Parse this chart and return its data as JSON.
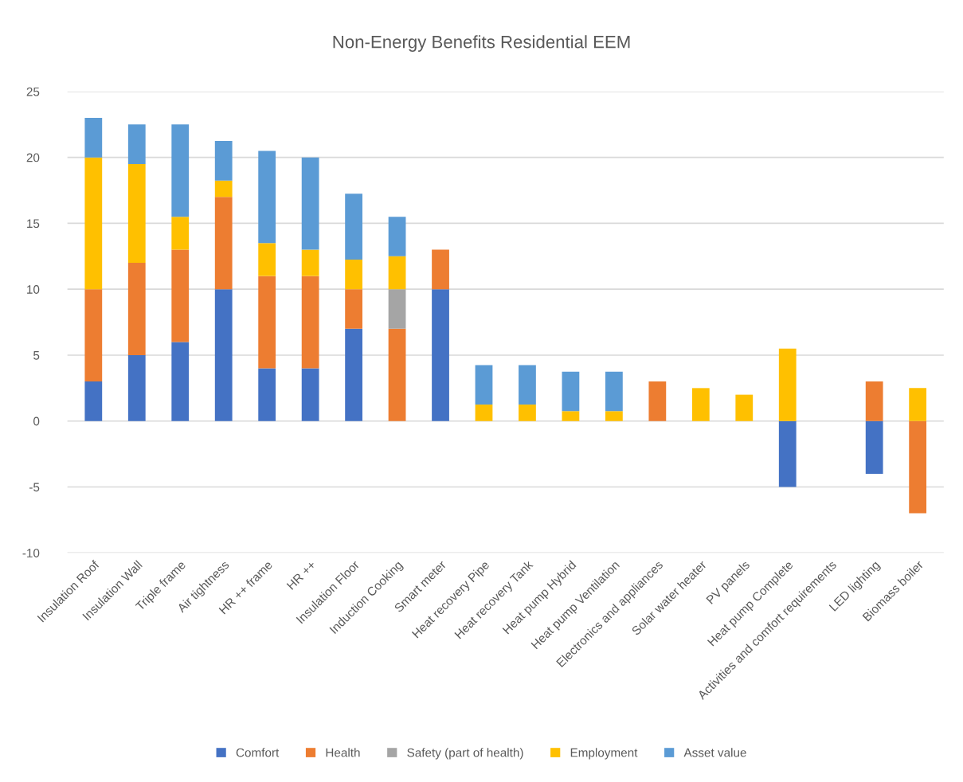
{
  "chart_data": {
    "type": "bar",
    "title": "Non-Energy Benefits Residential EEM",
    "stacked": true,
    "categories": [
      "Insulation Roof",
      "Insulation Wall",
      "Triple frame",
      "Air tightness",
      "HR ++ frame",
      "HR ++",
      "Insulation Floor",
      "Induction Cooking",
      "Smart meter",
      "Heat recovery Pipe",
      "Heat recovery Tank",
      "Heat pump Hybrid",
      "Heat pump Ventilation",
      "Electronics and appliances",
      "Solar water heater",
      "PV panels",
      "Heat pump Complete",
      "Activities and comfort requirements",
      "LED lighting",
      "Biomass boiler"
    ],
    "series": [
      {
        "name": "Comfort",
        "color": "#4472c4",
        "values": [
          3,
          5,
          6,
          10,
          4,
          4,
          7,
          null,
          10,
          null,
          null,
          null,
          null,
          null,
          null,
          null,
          -5,
          null,
          -4,
          null
        ]
      },
      {
        "name": "Health",
        "color": "#ed7d31",
        "values": [
          7,
          7,
          7,
          7,
          7,
          7,
          3,
          7,
          3,
          null,
          null,
          null,
          null,
          3,
          null,
          null,
          null,
          null,
          3,
          -7
        ]
      },
      {
        "name": "Safety (part of health)",
        "color": "#a5a5a5",
        "values": [
          null,
          null,
          null,
          null,
          null,
          null,
          null,
          3,
          null,
          null,
          null,
          null,
          null,
          null,
          null,
          null,
          null,
          null,
          null,
          null
        ]
      },
      {
        "name": "Employment",
        "color": "#ffc000",
        "values": [
          10,
          7.5,
          2.5,
          1.25,
          2.5,
          2,
          2.25,
          2.5,
          null,
          1.25,
          1.25,
          0.75,
          0.75,
          null,
          2.5,
          2,
          5.5,
          null,
          null,
          2.5
        ]
      },
      {
        "name": "Asset value",
        "color": "#5b9bd5",
        "values": [
          3,
          3,
          7,
          3,
          7,
          7,
          5,
          3,
          null,
          3,
          3,
          3,
          3,
          null,
          null,
          null,
          null,
          null,
          null,
          null
        ]
      }
    ],
    "ylim": [
      -10,
      25
    ],
    "yticks": [
      -10,
      -5,
      0,
      5,
      10,
      15,
      20,
      25
    ],
    "grid": "y",
    "legend": "bottom"
  }
}
